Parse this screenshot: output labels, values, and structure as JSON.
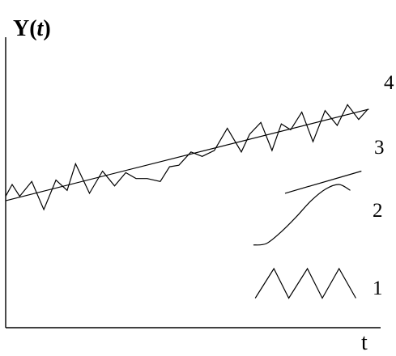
{
  "chart_data": {
    "type": "line",
    "title": "",
    "ylabel": "Y(",
    "ylabel_var": "t",
    "ylabel_close": ")",
    "xlabel": "t",
    "xlim": [
      0,
      20
    ],
    "ylim": [
      0,
      10
    ],
    "grid": false,
    "legend": "inline-right",
    "series": [
      {
        "key": "4",
        "role": "combined",
        "x": [
          0,
          0.35,
          0.75,
          1.4,
          2.05,
          2.7,
          3.3,
          3.75,
          4.5,
          5.2,
          5.85,
          6.45,
          7.0,
          7.6,
          8.3,
          8.8,
          9.3,
          9.95,
          10.55,
          11.2,
          11.9,
          12.65,
          13.1,
          13.7,
          14.3,
          14.8,
          15.3,
          15.9,
          16.5,
          17.15,
          17.8,
          18.35,
          18.95,
          19.45
        ],
        "y": [
          4.45,
          4.85,
          4.45,
          4.95,
          4.0,
          5.0,
          4.65,
          5.55,
          4.55,
          5.3,
          4.8,
          5.25,
          5.05,
          5.05,
          4.95,
          5.45,
          5.5,
          5.95,
          5.8,
          6.0,
          6.75,
          5.95,
          6.55,
          6.95,
          6.0,
          6.9,
          6.7,
          7.3,
          6.3,
          7.35,
          6.85,
          7.55,
          7.05,
          7.4
        ]
      },
      {
        "key": "3",
        "role": "trend",
        "x": [
          0,
          19.5
        ],
        "y": [
          4.3,
          7.4
        ]
      },
      {
        "key": "2",
        "role": "cycle",
        "x": [
          13.3,
          14.0,
          14.8,
          15.6,
          16.4,
          17.2,
          17.9,
          18.5
        ],
        "y": [
          2.8,
          2.85,
          3.25,
          3.75,
          4.3,
          4.7,
          4.85,
          4.65
        ]
      },
      {
        "key": "1",
        "role": "irregular",
        "x": [
          13.4,
          14.4,
          15.2,
          16.2,
          17.0,
          17.9,
          18.8
        ],
        "y": [
          1.0,
          2.0,
          1.0,
          2.0,
          1.0,
          2.0,
          1.0
        ]
      }
    ]
  }
}
